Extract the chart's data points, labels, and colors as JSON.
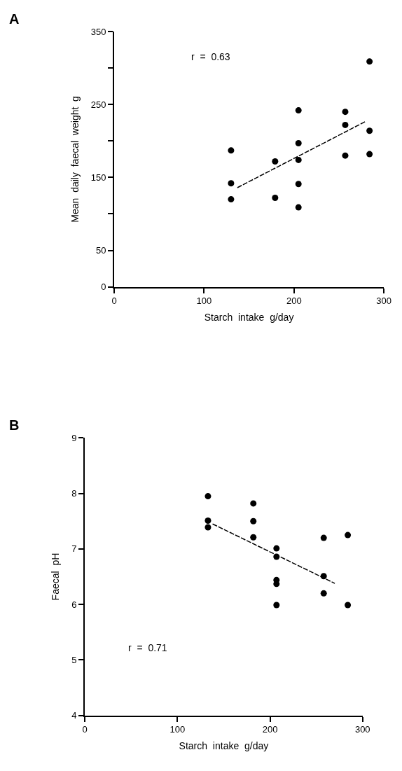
{
  "chart_data": [
    {
      "type": "scatter",
      "title": "A",
      "xlabel": "Starch  intake  g/day",
      "ylabel": "Mean  daily  faecal  weight  g",
      "annotations": [
        "r  =  0.63"
      ],
      "series": [
        {
          "color": "#000000",
          "x": [
            130,
            130,
            130,
            179,
            179,
            205,
            205,
            205,
            205,
            205,
            257,
            257,
            257,
            284,
            284,
            284
          ],
          "values": [
            187,
            142,
            120,
            172,
            122,
            242,
            197,
            174,
            141,
            109,
            240,
            222,
            180,
            309,
            214,
            182
          ]
        },
        {
          "type": "line",
          "color": "#000000",
          "line_style": "dashed",
          "marker": "none",
          "x": [
            137,
            280
          ],
          "values": [
            136,
            227
          ]
        }
      ],
      "xlim": [
        0,
        300
      ],
      "xticks": [
        0,
        100,
        200,
        300
      ],
      "ylim": [
        0,
        350
      ],
      "yticks": [
        0,
        50,
        {
          "value": 100,
          "label": null
        },
        150,
        {
          "value": 200,
          "label": null
        },
        250,
        {
          "value": 300,
          "label": null
        },
        350
      ],
      "marker": "circle"
    },
    {
      "type": "scatter",
      "title": "B",
      "xlabel": "Starch  intake  g/day",
      "ylabel": "Faecal  pH",
      "annotations": [
        "r  =  0.71"
      ],
      "series": [
        {
          "color": "#000000",
          "x": [
            133,
            133,
            133,
            182,
            182,
            182,
            207,
            207,
            207,
            207,
            207,
            258,
            258,
            258,
            284,
            284
          ],
          "values": [
            7.95,
            7.51,
            7.39,
            7.82,
            7.5,
            7.21,
            7.01,
            6.86,
            6.44,
            6.37,
            5.99,
            7.2,
            6.51,
            6.2,
            7.25,
            5.99
          ]
        },
        {
          "type": "line",
          "color": "#000000",
          "line_style": "dashed",
          "marker": "none",
          "x": [
            138,
            270
          ],
          "values": [
            7.45,
            6.38
          ]
        }
      ],
      "xlim": [
        0,
        300
      ],
      "xticks": [
        0,
        100,
        200,
        300
      ],
      "ylim": [
        4,
        9
      ],
      "yticks": [
        4,
        5,
        6,
        7,
        8,
        9
      ],
      "marker": "circle"
    }
  ]
}
